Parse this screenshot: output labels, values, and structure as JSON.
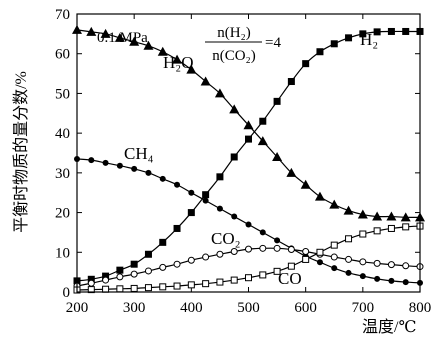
{
  "chart_data": {
    "type": "line",
    "xlabel": "温度/℃",
    "ylabel": "平衡时物质的量分数/%",
    "xlim": [
      200,
      800
    ],
    "ylim": [
      0,
      70
    ],
    "xticks": [
      200,
      300,
      400,
      500,
      600,
      700,
      800
    ],
    "yticks": [
      0,
      10,
      20,
      30,
      40,
      50,
      60,
      70
    ],
    "grid": false,
    "annotations": {
      "pressure": "0.1 MPa",
      "ratio_numerator": "n(H₂)",
      "ratio_denominator": "n(CO₂)",
      "ratio_value": "=4"
    },
    "x": [
      200,
      225,
      250,
      275,
      300,
      325,
      350,
      375,
      400,
      425,
      450,
      475,
      500,
      525,
      550,
      575,
      600,
      625,
      650,
      675,
      700,
      725,
      750,
      775,
      800
    ],
    "series": [
      {
        "name": "H₂O",
        "marker": "triangle",
        "values": [
          66,
          65.5,
          65,
          64,
          63,
          62,
          60.5,
          58.5,
          56,
          53,
          50,
          46,
          42,
          38,
          34,
          30,
          27,
          24,
          22,
          20.5,
          19.5,
          19,
          19,
          18.8,
          18.8
        ]
      },
      {
        "name": "H₂",
        "marker": "square",
        "values": [
          2.8,
          3.2,
          4,
          5.5,
          7,
          9.5,
          12.5,
          16,
          20,
          24.5,
          29,
          34,
          38.5,
          43,
          48,
          53,
          57.5,
          60.5,
          62.5,
          64,
          65,
          65.5,
          65.6,
          65.6,
          65.6
        ]
      },
      {
        "name": "CH₄",
        "marker": "circle",
        "values": [
          33.5,
          33.2,
          32.5,
          31.8,
          31,
          30,
          28.5,
          27,
          25,
          23,
          21,
          19,
          17,
          15,
          13,
          11,
          9,
          7.5,
          6,
          4.8,
          4,
          3.3,
          2.8,
          2.5,
          2.3
        ]
      },
      {
        "name": "CO₂",
        "marker": "open-circle",
        "values": [
          1.5,
          2.2,
          3,
          3.8,
          4.5,
          5.3,
          6.2,
          7,
          8,
          8.8,
          9.5,
          10.2,
          10.8,
          11,
          11,
          10.7,
          10.2,
          9.5,
          8.8,
          8.2,
          7.6,
          7.2,
          6.9,
          6.6,
          6.4
        ]
      },
      {
        "name": "CO",
        "marker": "open-square",
        "values": [
          0.5,
          0.6,
          0.7,
          0.8,
          0.9,
          1.1,
          1.3,
          1.5,
          1.8,
          2.1,
          2.5,
          3,
          3.6,
          4.3,
          5.2,
          6.5,
          8.2,
          10,
          11.8,
          13.4,
          14.6,
          15.4,
          16,
          16.4,
          16.6
        ]
      }
    ]
  }
}
